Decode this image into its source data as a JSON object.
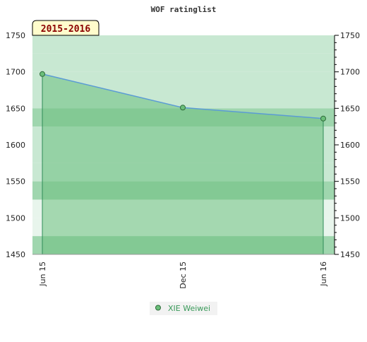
{
  "chart_data": {
    "type": "area",
    "title": "WOF ratinglist",
    "season_label": "2015-2016",
    "xlabel": "",
    "ylabel": "",
    "ylim": [
      1450,
      1750
    ],
    "yticks": [
      1450,
      1500,
      1550,
      1600,
      1650,
      1700,
      1750
    ],
    "x_ticks": [
      "Jun 15",
      "Dec 15",
      "Jun 16"
    ],
    "series": [
      {
        "name": "XIE Weiwei",
        "x": [
          "Jun 15",
          "Dec 15",
          "Jun 16"
        ],
        "values": [
          1697,
          1651,
          1636
        ]
      }
    ],
    "grid": true,
    "legend_position": "bottom-center",
    "colors": {
      "line": "#5b9bd5",
      "marker_fill": "#6bbf7a",
      "marker_stroke": "#2e6b3a",
      "area": "#6cc07f",
      "band_light": "#e8f5ec",
      "band_mid": "#c8e8d2",
      "band_dark": "#9fd6ae",
      "season_bg": "#fffccc"
    }
  }
}
